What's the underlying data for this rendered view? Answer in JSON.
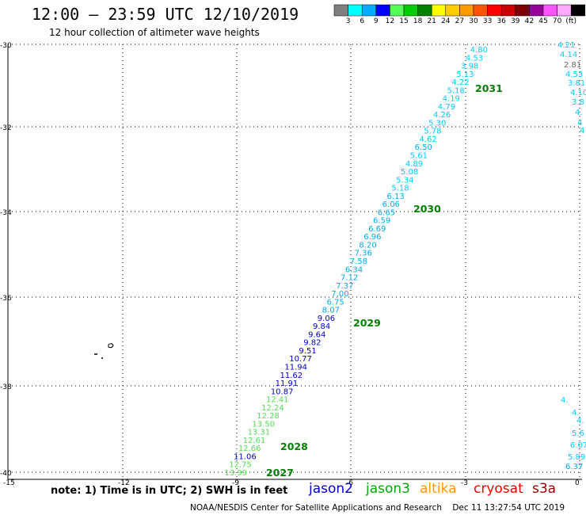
{
  "header": {
    "title": "12:00 – 23:59 UTC 12/10/2019",
    "subtitle": "12 hour collection of altimeter wave heights"
  },
  "colorbar": {
    "colors": [
      "#7f7f7f",
      "#00ffff",
      "#00aaff",
      "#0000ff",
      "#55ff55",
      "#00cc00",
      "#007f00",
      "#ffff00",
      "#ffcc00",
      "#ff9900",
      "#ff5500",
      "#ff0000",
      "#cc0000",
      "#7f0000",
      "#990099",
      "#ff55ff",
      "#ffaaff",
      "#000000"
    ],
    "labels": [
      "3",
      "6",
      "9",
      "12",
      "15",
      "18",
      "21",
      "24",
      "27",
      "30",
      "33",
      "36",
      "39",
      "42",
      "45",
      "70",
      "(ft)"
    ]
  },
  "axes": {
    "x_labels": [
      "-15",
      "-12",
      "-9",
      "-6",
      "-3",
      "0"
    ],
    "y_labels": [
      "-30",
      "-32",
      "-34",
      "-36",
      "-38",
      "-40"
    ]
  },
  "passes": [
    {
      "id": "2031",
      "label": "2031"
    },
    {
      "id": "2030",
      "label": "2030"
    },
    {
      "id": "2029",
      "label": "2029"
    },
    {
      "id": "2028",
      "label": "2028"
    },
    {
      "id": "2027",
      "label": "2027"
    }
  ],
  "swh_track": [
    {
      "v": "4.80",
      "c": "#00ccff"
    },
    {
      "v": "4.53",
      "c": "#00ccff"
    },
    {
      "v": "3.98",
      "c": "#00ccff"
    },
    {
      "v": "5.13",
      "c": "#00ccff"
    },
    {
      "v": "4.22",
      "c": "#00ccff"
    },
    {
      "v": "5.18",
      "c": "#00ccff"
    },
    {
      "v": "4.19",
      "c": "#00ccff"
    },
    {
      "v": "4.79",
      "c": "#00ccff"
    },
    {
      "v": "4.26",
      "c": "#00ccff"
    },
    {
      "v": "5.30",
      "c": "#00ccff"
    },
    {
      "v": "5.78",
      "c": "#00ccff"
    },
    {
      "v": "4.62",
      "c": "#00ccff"
    },
    {
      "v": "6.50",
      "c": "#00aaee"
    },
    {
      "v": "5.61",
      "c": "#00ccff"
    },
    {
      "v": "4.89",
      "c": "#00ccff"
    },
    {
      "v": "5.08",
      "c": "#00ccff"
    },
    {
      "v": "5.34",
      "c": "#00ccff"
    },
    {
      "v": "5.18",
      "c": "#00ccff"
    },
    {
      "v": "6.13",
      "c": "#00aaee"
    },
    {
      "v": "6.06",
      "c": "#00aaee"
    },
    {
      "v": "6.65",
      "c": "#00aaee"
    },
    {
      "v": "6.59",
      "c": "#00aaee"
    },
    {
      "v": "6.69",
      "c": "#00aaee"
    },
    {
      "v": "6.96",
      "c": "#00aaee"
    },
    {
      "v": "8.20",
      "c": "#00aaee"
    },
    {
      "v": "7.36",
      "c": "#00aaee"
    },
    {
      "v": "7.58",
      "c": "#00aaee"
    },
    {
      "v": "6.34",
      "c": "#00aaee"
    },
    {
      "v": "7.12",
      "c": "#00aaee"
    },
    {
      "v": "7.37",
      "c": "#00aaee"
    },
    {
      "v": "7.00",
      "c": "#00aaee"
    },
    {
      "v": "6.75",
      "c": "#00aaee"
    },
    {
      "v": "8.07",
      "c": "#00aaee"
    },
    {
      "v": "9.06",
      "c": "#0000cc"
    },
    {
      "v": "9.84",
      "c": "#0000cc"
    },
    {
      "v": "9.64",
      "c": "#0000cc"
    },
    {
      "v": "9.82",
      "c": "#0000cc"
    },
    {
      "v": "9.51",
      "c": "#0000cc"
    },
    {
      "v": "10.77",
      "c": "#0000cc"
    },
    {
      "v": "11.94",
      "c": "#0000cc"
    },
    {
      "v": "11.62",
      "c": "#0000cc"
    },
    {
      "v": "11.91",
      "c": "#0000cc"
    },
    {
      "v": "10.87",
      "c": "#0000cc"
    },
    {
      "v": "12.41",
      "c": "#55dd55"
    },
    {
      "v": "12.24",
      "c": "#55dd55"
    },
    {
      "v": "12.28",
      "c": "#55dd55"
    },
    {
      "v": "13.50",
      "c": "#55dd55"
    },
    {
      "v": "13.31",
      "c": "#55dd55"
    },
    {
      "v": "12.61",
      "c": "#55dd55"
    },
    {
      "v": "12.66",
      "c": "#55dd55"
    },
    {
      "v": "11.06",
      "c": "#0000cc"
    },
    {
      "v": "12.75",
      "c": "#55dd55"
    },
    {
      "v": "13.99",
      "c": "#55dd55"
    }
  ],
  "east_track": [
    {
      "v": "4.21",
      "c": "#00ccff"
    },
    {
      "v": "4.14",
      "c": "#00ccff"
    },
    {
      "v": "2.81",
      "c": "#666666"
    },
    {
      "v": "4.53",
      "c": "#00ccff"
    },
    {
      "v": "3.81",
      "c": "#00ccff"
    },
    {
      "v": "4.10",
      "c": "#00ccff"
    },
    {
      "v": "3.8",
      "c": "#00ccff"
    },
    {
      "v": "4.",
      "c": "#00ccff"
    },
    {
      "v": "4",
      "c": "#00ccff"
    },
    {
      "v": "4",
      "c": "#00ccff"
    },
    {
      "v": "4.",
      "c": "#00ccff"
    },
    {
      "v": "4.",
      "c": "#00ccff"
    },
    {
      "v": "4.",
      "c": "#00ccff"
    },
    {
      "v": "5.6",
      "c": "#00ccff"
    },
    {
      "v": "6.07",
      "c": "#00ccff"
    },
    {
      "v": "5.89",
      "c": "#00ccff"
    },
    {
      "v": "6.37",
      "c": "#00aaee"
    }
  ],
  "note": "note:  1) Time is in UTC;  2) SWH is in feet",
  "satellites": [
    {
      "name": "jason2",
      "color": "#0000cc"
    },
    {
      "name": "jason3",
      "color": "#00aa00"
    },
    {
      "name": "altika",
      "color": "#ff9900"
    },
    {
      "name": "cryosat",
      "color": "#ee0000"
    },
    {
      "name": "s3a",
      "color": "#990000"
    }
  ],
  "footer": "NOAA/NESDIS Center for Satellite Applications and Research    Dec 11 13:27:54 UTC 2019"
}
